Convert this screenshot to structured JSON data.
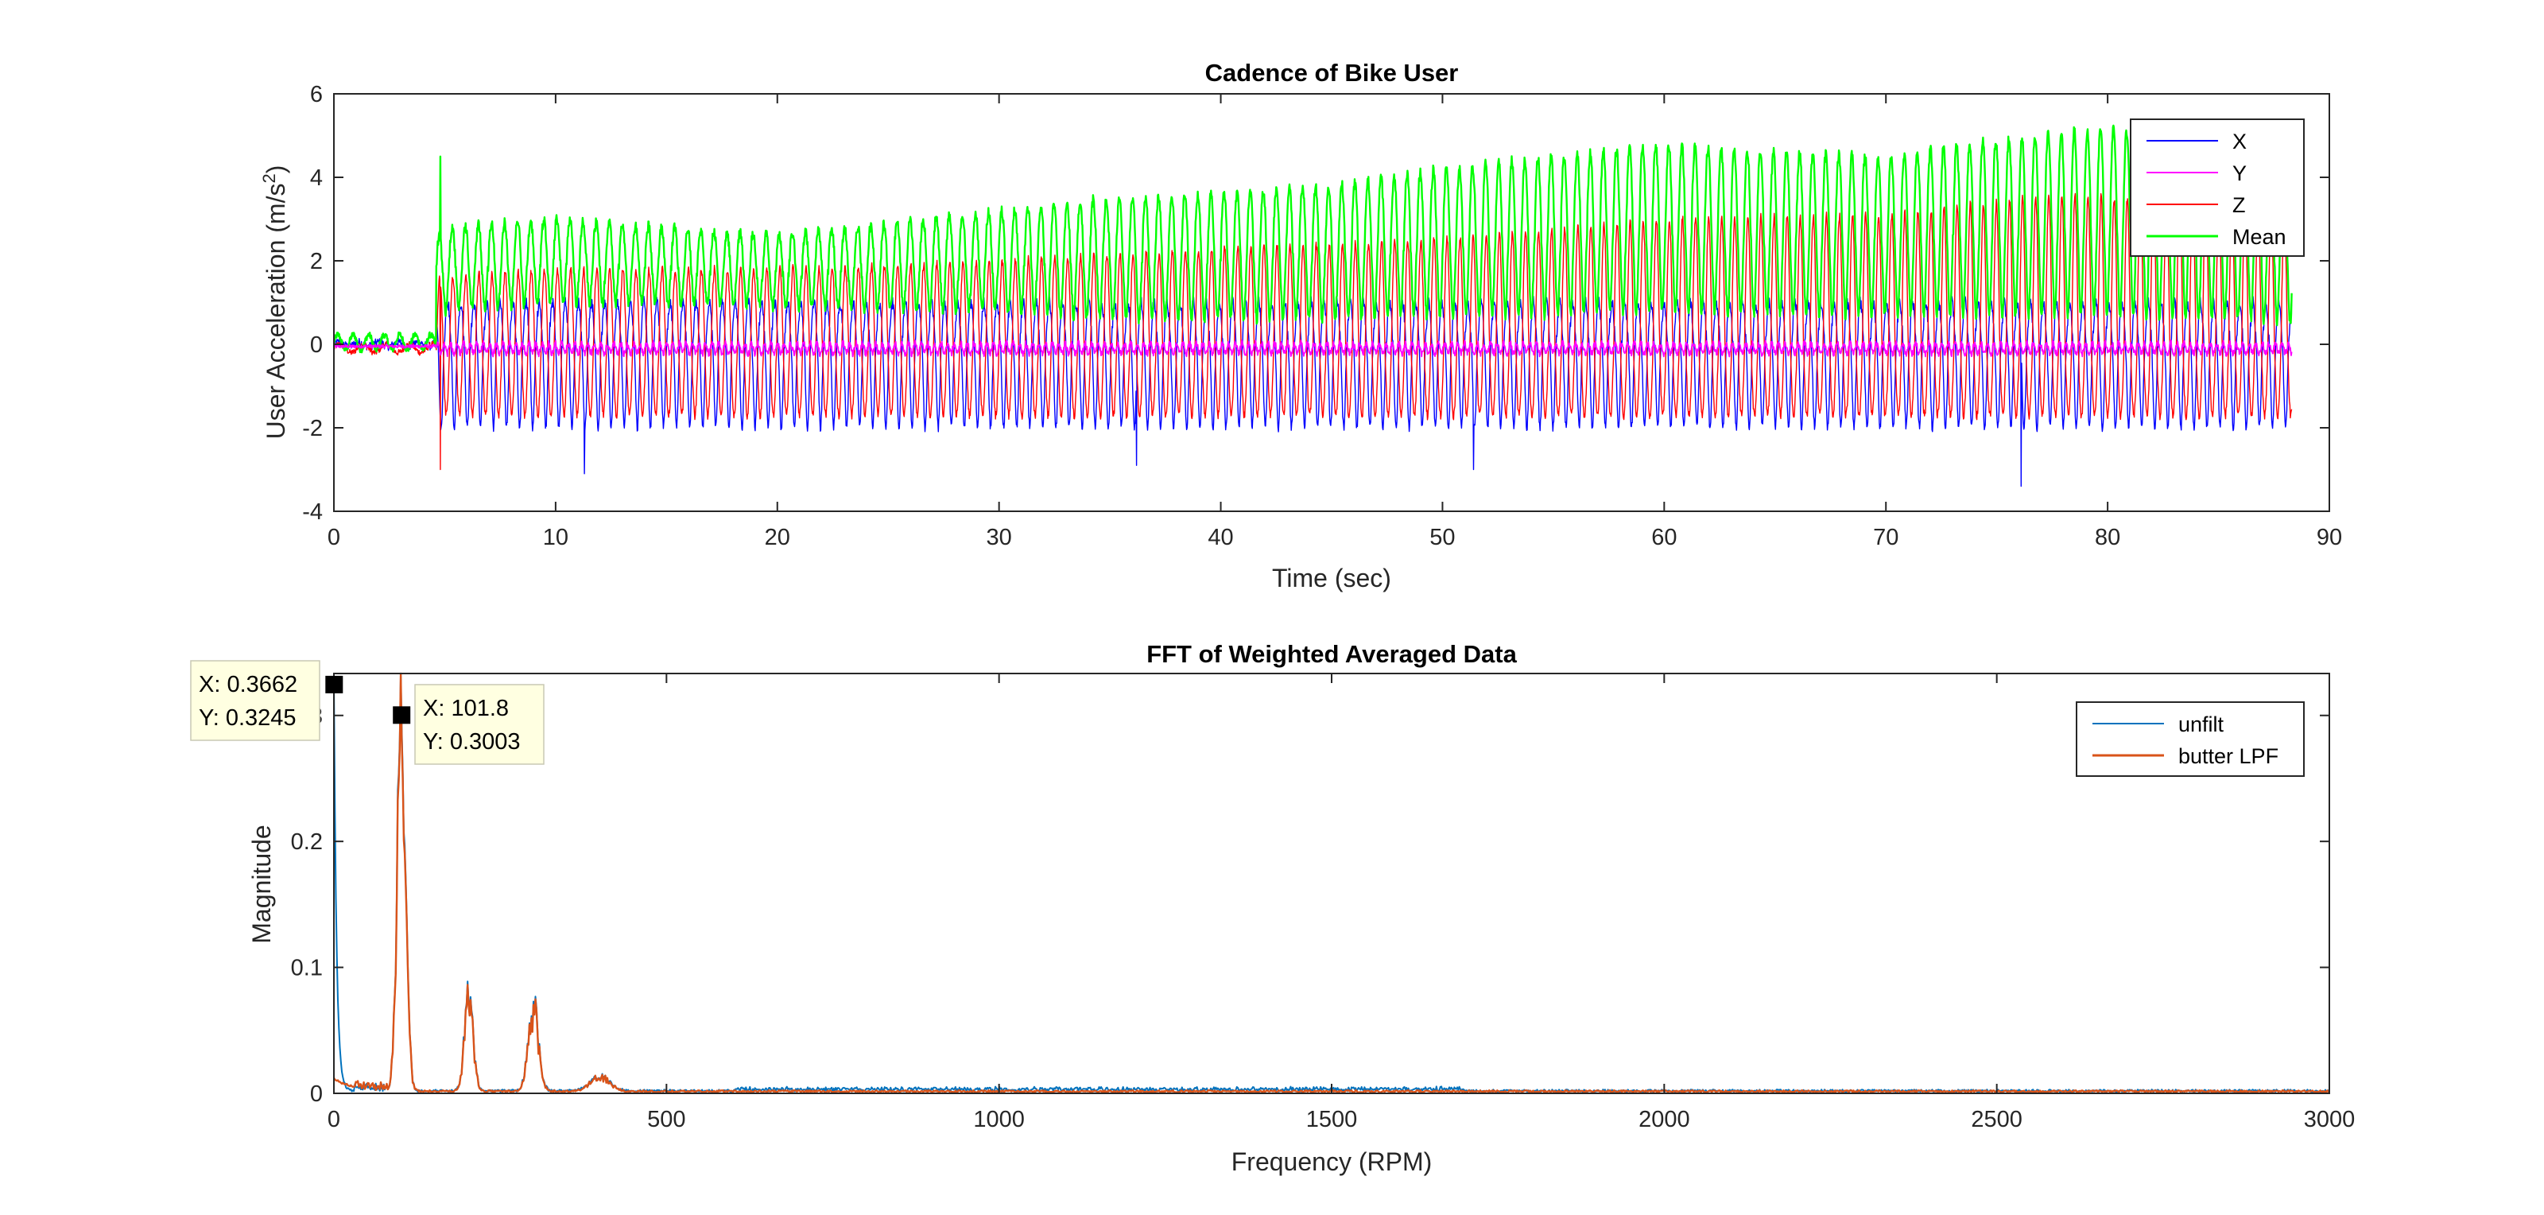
{
  "chart_data": [
    {
      "type": "line",
      "title": "Cadence of Bike User",
      "xlabel": "Time (sec)",
      "ylabel": "User Acceleration (m/s",
      "ylabel_sup": "2",
      "ylabel_close": ")",
      "xlim": [
        0,
        90
      ],
      "ylim": [
        -4,
        6
      ],
      "xticks": [
        0,
        10,
        20,
        30,
        40,
        50,
        60,
        70,
        80,
        90
      ],
      "xtick_labels": [
        "0",
        "10",
        "20",
        "30",
        "40",
        "50",
        "60",
        "70",
        "80",
        "90"
      ],
      "yticks": [
        -4,
        -2,
        0,
        2,
        4,
        6
      ],
      "ytick_labels": [
        "-4",
        "-2",
        "0",
        "2",
        "4",
        "6"
      ],
      "grid": false,
      "legend_position": "top-right",
      "series": [
        {
          "name": "X",
          "color": "#0000ff"
        },
        {
          "name": "Y",
          "color": "#ff00ff"
        },
        {
          "name": "Z",
          "color": "#ff0000"
        },
        {
          "name": "Mean",
          "color": "#00ff00"
        }
      ],
      "cycle_period_sec": 0.59,
      "signal_start_sec": 4.6,
      "end_sec": 88.3,
      "mean_envelope": {
        "t": [
          0,
          3,
          4.6,
          5,
          10,
          20,
          30,
          35,
          40,
          45,
          50,
          55,
          60,
          65,
          70,
          75,
          80,
          85,
          88
        ],
        "peak": [
          0.3,
          0.3,
          2.5,
          2.8,
          3.0,
          2.6,
          3.2,
          3.5,
          3.6,
          3.8,
          4.2,
          4.5,
          4.8,
          4.6,
          4.5,
          4.9,
          5.2,
          4.6,
          4.2
        ],
        "trough": [
          -0.2,
          -0.2,
          0.5,
          0.8,
          1.0,
          0.9,
          0.8,
          0.6,
          0.6,
          0.6,
          0.7,
          0.7,
          0.8,
          0.7,
          0.7,
          0.7,
          0.7,
          0.6,
          0.5
        ]
      },
      "z_mean_level": {
        "t": [
          0,
          4.6,
          10,
          20,
          30,
          40,
          50,
          60,
          70,
          78,
          85,
          88
        ],
        "value": [
          0,
          1.6,
          1.8,
          1.8,
          2.0,
          2.3,
          2.5,
          3.0,
          3.1,
          3.6,
          3.3,
          2.9
        ]
      },
      "x_trough_level": -2.0,
      "z_trough_level": -1.8,
      "spikes": [
        {
          "series": "Mean",
          "x": 4.8,
          "y": 4.5
        },
        {
          "series": "Z",
          "x": 4.8,
          "y": -3.0
        },
        {
          "series": "X",
          "x": 11.3,
          "y": -3.1
        },
        {
          "series": "X",
          "x": 36.2,
          "y": -2.9
        },
        {
          "series": "X",
          "x": 51.4,
          "y": -3.0
        },
        {
          "series": "X",
          "x": 76.1,
          "y": -3.4
        }
      ]
    },
    {
      "type": "line",
      "title": "FFT of Weighted Averaged Data",
      "xlabel": "Frequency (RPM)",
      "ylabel": "Magnitude",
      "xlim": [
        0,
        3000
      ],
      "ylim": [
        0,
        0.3333
      ],
      "xticks": [
        0,
        500,
        1000,
        1500,
        2000,
        2500,
        3000
      ],
      "xtick_labels": [
        "0",
        "500",
        "1000",
        "1500",
        "2000",
        "2500",
        "3000"
      ],
      "yticks": [
        0,
        0.1,
        0.2,
        0.3
      ],
      "ytick_labels": [
        "0",
        "0.1",
        "0.2",
        "0.3"
      ],
      "grid": false,
      "legend_position": "top-right",
      "series": [
        {
          "name": "unfilt",
          "color": "#0072bd"
        },
        {
          "name": "butter LPF",
          "color": "#d95319"
        }
      ],
      "peaks": [
        {
          "x": 0,
          "y": 0.3245,
          "width": 6
        },
        {
          "x": 101.8,
          "y": 0.3003,
          "width": 9
        },
        {
          "x": 203,
          "y": 0.075,
          "width": 9
        },
        {
          "x": 300,
          "y": 0.065,
          "width": 11
        },
        {
          "x": 400,
          "y": 0.012,
          "width": 20
        }
      ],
      "noise_floor": 0.002,
      "datatips": [
        {
          "x_label": "X: 0.3662",
          "y_label": "Y: 0.3245",
          "x": 0.3662,
          "y": 0.3245,
          "box_side": "left"
        },
        {
          "x_label": "X: 101.8",
          "y_label": "Y: 0.3003",
          "x": 101.8,
          "y": 0.3003,
          "box_side": "right"
        }
      ]
    }
  ]
}
